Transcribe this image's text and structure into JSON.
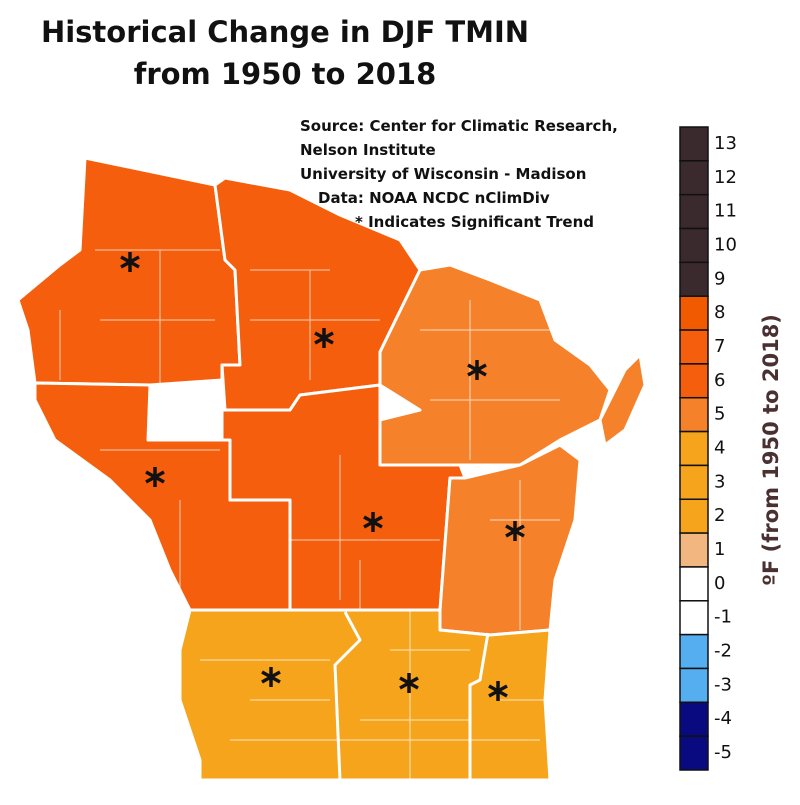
{
  "title": [
    "Historical Change in DJF TMIN",
    "from 1950 to 2018"
  ],
  "source": [
    "Source:  Center for Climatic Research,",
    "Nelson Institute",
    "University of Wisconsin - Madison",
    "Data: NOAA NCDC nClimDiv",
    "*  Indicates Significant Trend"
  ],
  "legend": {
    "title": "ºF (from 1950 to 2018)",
    "ticks": [
      13,
      12,
      11,
      10,
      9,
      8,
      7,
      6,
      5,
      4,
      3,
      2,
      1,
      0,
      -1,
      -2,
      -3,
      -4,
      -5
    ],
    "colors": [
      "#3a2a2e",
      "#3a2a2e",
      "#3a2a2e",
      "#3a2a2e",
      "#3a2a2e",
      "#f25a00",
      "#f55e0c",
      "#f55e0c",
      "#f5822a",
      "#f5a41c",
      "#f5a41c",
      "#f5a41c",
      "#f2b680",
      "#ffffff",
      "#ffffff",
      "#55aef0",
      "#55aef0",
      "#0a0a80",
      "#0a0a80"
    ]
  }
}
